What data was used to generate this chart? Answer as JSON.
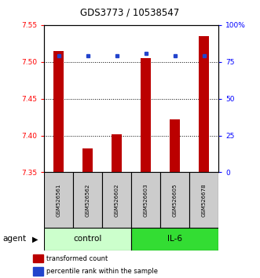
{
  "title": "GDS3773 / 10538547",
  "samples": [
    "GSM526561",
    "GSM526562",
    "GSM526602",
    "GSM526603",
    "GSM526605",
    "GSM526678"
  ],
  "red_values": [
    7.515,
    7.382,
    7.402,
    7.505,
    7.422,
    7.535
  ],
  "blue_values": [
    79,
    79,
    79,
    81,
    79,
    79
  ],
  "ylim_left": [
    7.35,
    7.55
  ],
  "ylim_right": [
    0,
    100
  ],
  "yticks_left": [
    7.35,
    7.4,
    7.45,
    7.5,
    7.55
  ],
  "yticks_right": [
    0,
    25,
    50,
    75,
    100
  ],
  "ytick_labels_right": [
    "0",
    "25",
    "50",
    "75",
    "100%"
  ],
  "grid_values": [
    7.4,
    7.45,
    7.5
  ],
  "bar_color": "#bb0000",
  "blue_color": "#2244cc",
  "control_color": "#ccffcc",
  "il6_color": "#33dd33",
  "agent_label": "agent",
  "control_label": "control",
  "il6_label": "IL-6",
  "legend_red": "transformed count",
  "legend_blue": "percentile rank within the sample",
  "x_positions": [
    0,
    1,
    2,
    3,
    4,
    5
  ],
  "n_control": 3,
  "n_il6": 3
}
